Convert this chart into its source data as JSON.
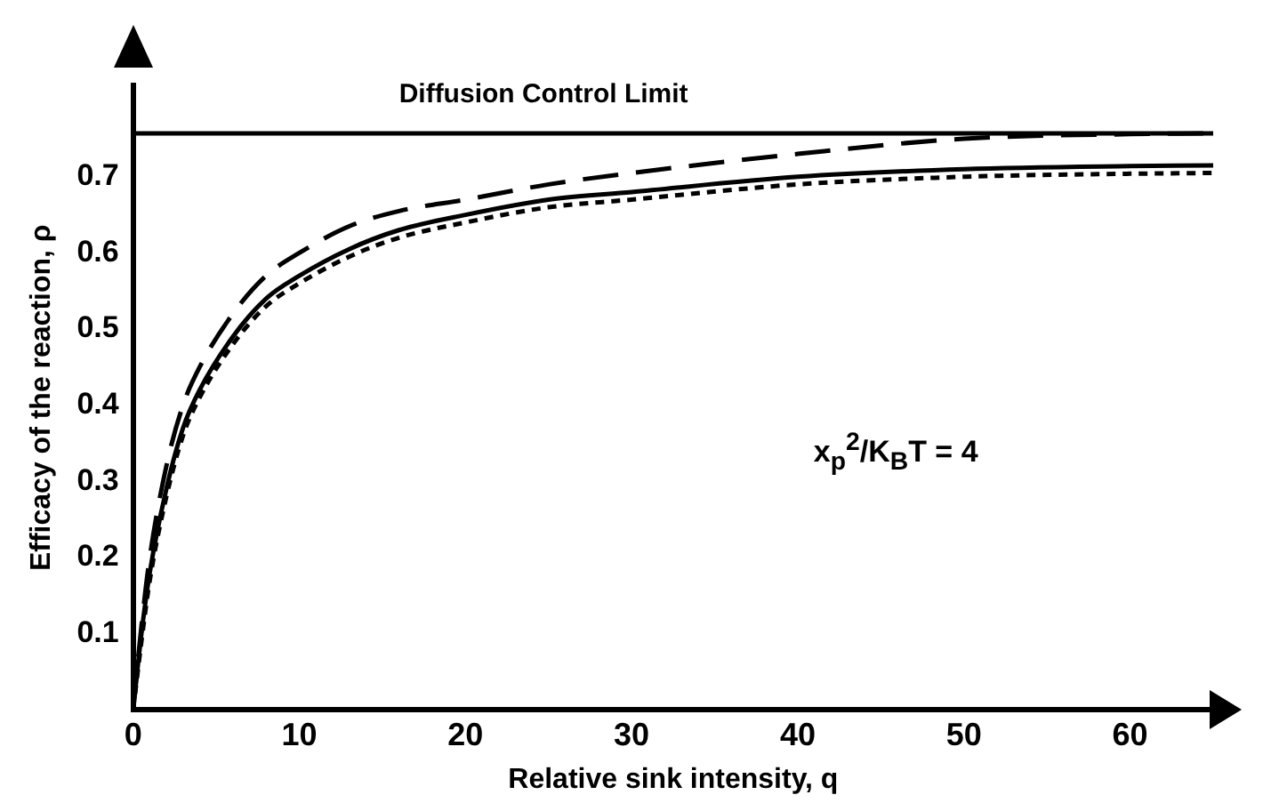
{
  "chart_data": {
    "type": "line",
    "xlabel": "Relative sink intensity, q",
    "ylabel": "Efficacy of the reaction, ρ",
    "xlim": [
      0,
      65
    ],
    "xticks": [
      0,
      10,
      20,
      30,
      40,
      50,
      60
    ],
    "ylim": [
      0,
      0.82
    ],
    "yticks": [
      0.1,
      0.2,
      0.3,
      0.4,
      0.5,
      0.6,
      0.7
    ],
    "grid": false,
    "legend": false,
    "marker": "none",
    "x": [
      0,
      0.5,
      1,
      2,
      3,
      4,
      6,
      8,
      10,
      13,
      16,
      20,
      25,
      30,
      40,
      50,
      60,
      65
    ],
    "series": [
      {
        "color": "#000000",
        "line_style": "dashed",
        "values": [
          0,
          0.11,
          0.2,
          0.32,
          0.4,
          0.45,
          0.52,
          0.57,
          0.6,
          0.635,
          0.655,
          0.67,
          0.69,
          0.705,
          0.73,
          0.75,
          0.756,
          0.757
        ]
      },
      {
        "color": "#000000",
        "line_style": "solid",
        "values": [
          0,
          0.1,
          0.18,
          0.29,
          0.37,
          0.42,
          0.49,
          0.54,
          0.57,
          0.605,
          0.63,
          0.65,
          0.67,
          0.68,
          0.7,
          0.71,
          0.714,
          0.715
        ]
      },
      {
        "color": "#000000",
        "line_style": "dotted",
        "values": [
          0,
          0.09,
          0.17,
          0.28,
          0.36,
          0.41,
          0.48,
          0.53,
          0.56,
          0.595,
          0.62,
          0.64,
          0.66,
          0.67,
          0.69,
          0.7,
          0.704,
          0.705
        ]
      }
    ],
    "ref_lines": [
      {
        "axis": "y",
        "value": 0.757,
        "label": "Diffusion Control Limit",
        "color": "#000000",
        "line_style": "solid"
      }
    ],
    "annotations": [
      "x$_{p}$$^{2}$/K$_{B}$T = 4"
    ]
  }
}
